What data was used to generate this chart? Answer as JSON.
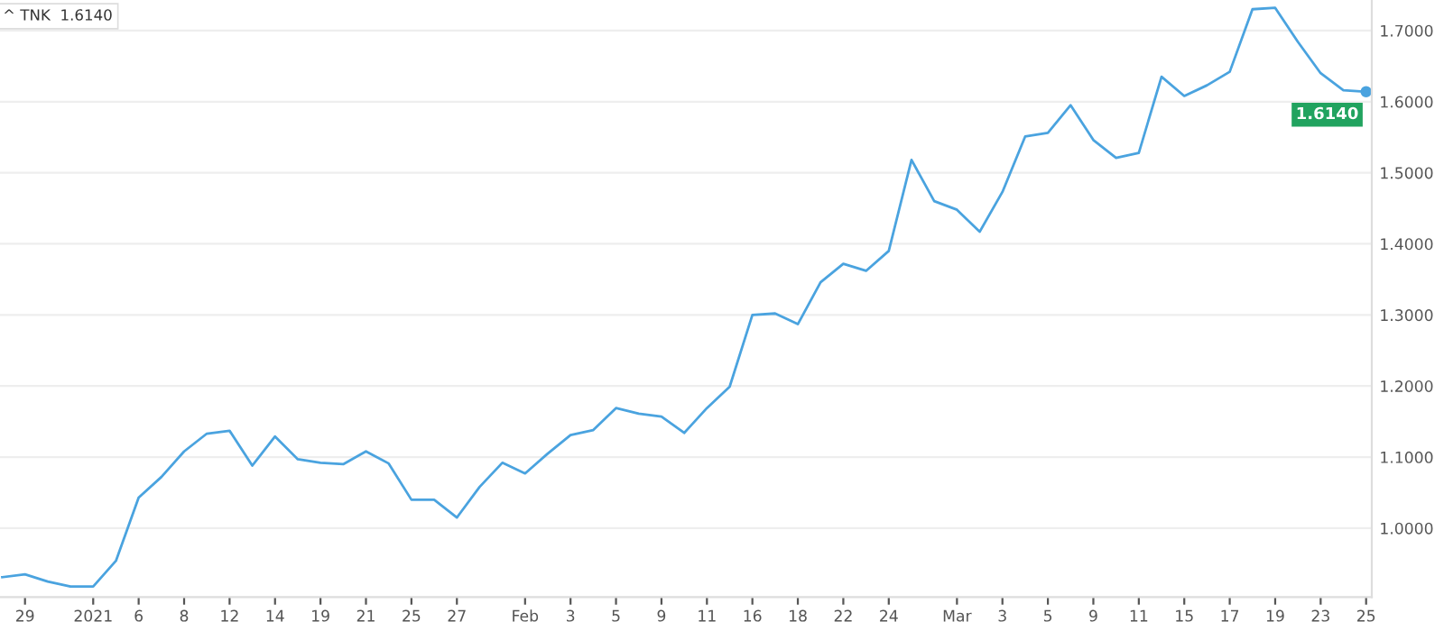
{
  "chart_data": {
    "type": "line",
    "categories": [
      null,
      "29",
      null,
      null,
      "2021",
      null,
      "6",
      null,
      "8",
      null,
      "12",
      null,
      "14",
      null,
      "19",
      null,
      "21",
      null,
      "25",
      null,
      "27",
      null,
      null,
      "Feb",
      null,
      "3",
      null,
      "5",
      null,
      "9",
      null,
      "11",
      null,
      "16",
      null,
      "18",
      null,
      "22",
      null,
      "24",
      null,
      null,
      "Mar",
      null,
      "3",
      null,
      "5",
      null,
      "9",
      null,
      "11",
      null,
      "15",
      null,
      "17",
      null,
      "19",
      null,
      "23",
      null,
      "25"
    ],
    "series": [
      {
        "color": "#4aa3df",
        "values": [
          0.931,
          0.935,
          0.925,
          0.918,
          0.918,
          0.954,
          1.043,
          1.072,
          1.108,
          1.133,
          1.137,
          1.088,
          1.129,
          1.097,
          1.092,
          1.09,
          1.108,
          1.091,
          1.04,
          1.04,
          1.015,
          1.058,
          1.092,
          1.077,
          1.105,
          1.131,
          1.138,
          1.169,
          1.161,
          1.157,
          1.134,
          1.169,
          1.199,
          1.3,
          1.302,
          1.287,
          1.346,
          1.372,
          1.362,
          1.39,
          1.518,
          1.46,
          1.448,
          1.417,
          1.473,
          1.551,
          1.556,
          1.595,
          1.546,
          1.521,
          1.528,
          1.635,
          1.608,
          1.623,
          1.642,
          1.73,
          1.732,
          1.684,
          1.64,
          1.616,
          1.614
        ]
      }
    ],
    "ylim": [
      0.903,
      1.743
    ],
    "yticks": [
      {
        "value": 1.0,
        "label": "1.0000"
      },
      {
        "value": 1.1,
        "label": "1.1000"
      },
      {
        "value": 1.2,
        "label": "1.2000"
      },
      {
        "value": 1.3,
        "label": "1.3000"
      },
      {
        "value": 1.4,
        "label": "1.4000"
      },
      {
        "value": 1.5,
        "label": "1.5000"
      },
      {
        "value": 1.6,
        "label": "1.6000"
      },
      {
        "value": 1.7,
        "label": "1.7000"
      }
    ],
    "grid": "y",
    "annotations": [
      "^ TNK  1.6140",
      "1.6140"
    ]
  }
}
